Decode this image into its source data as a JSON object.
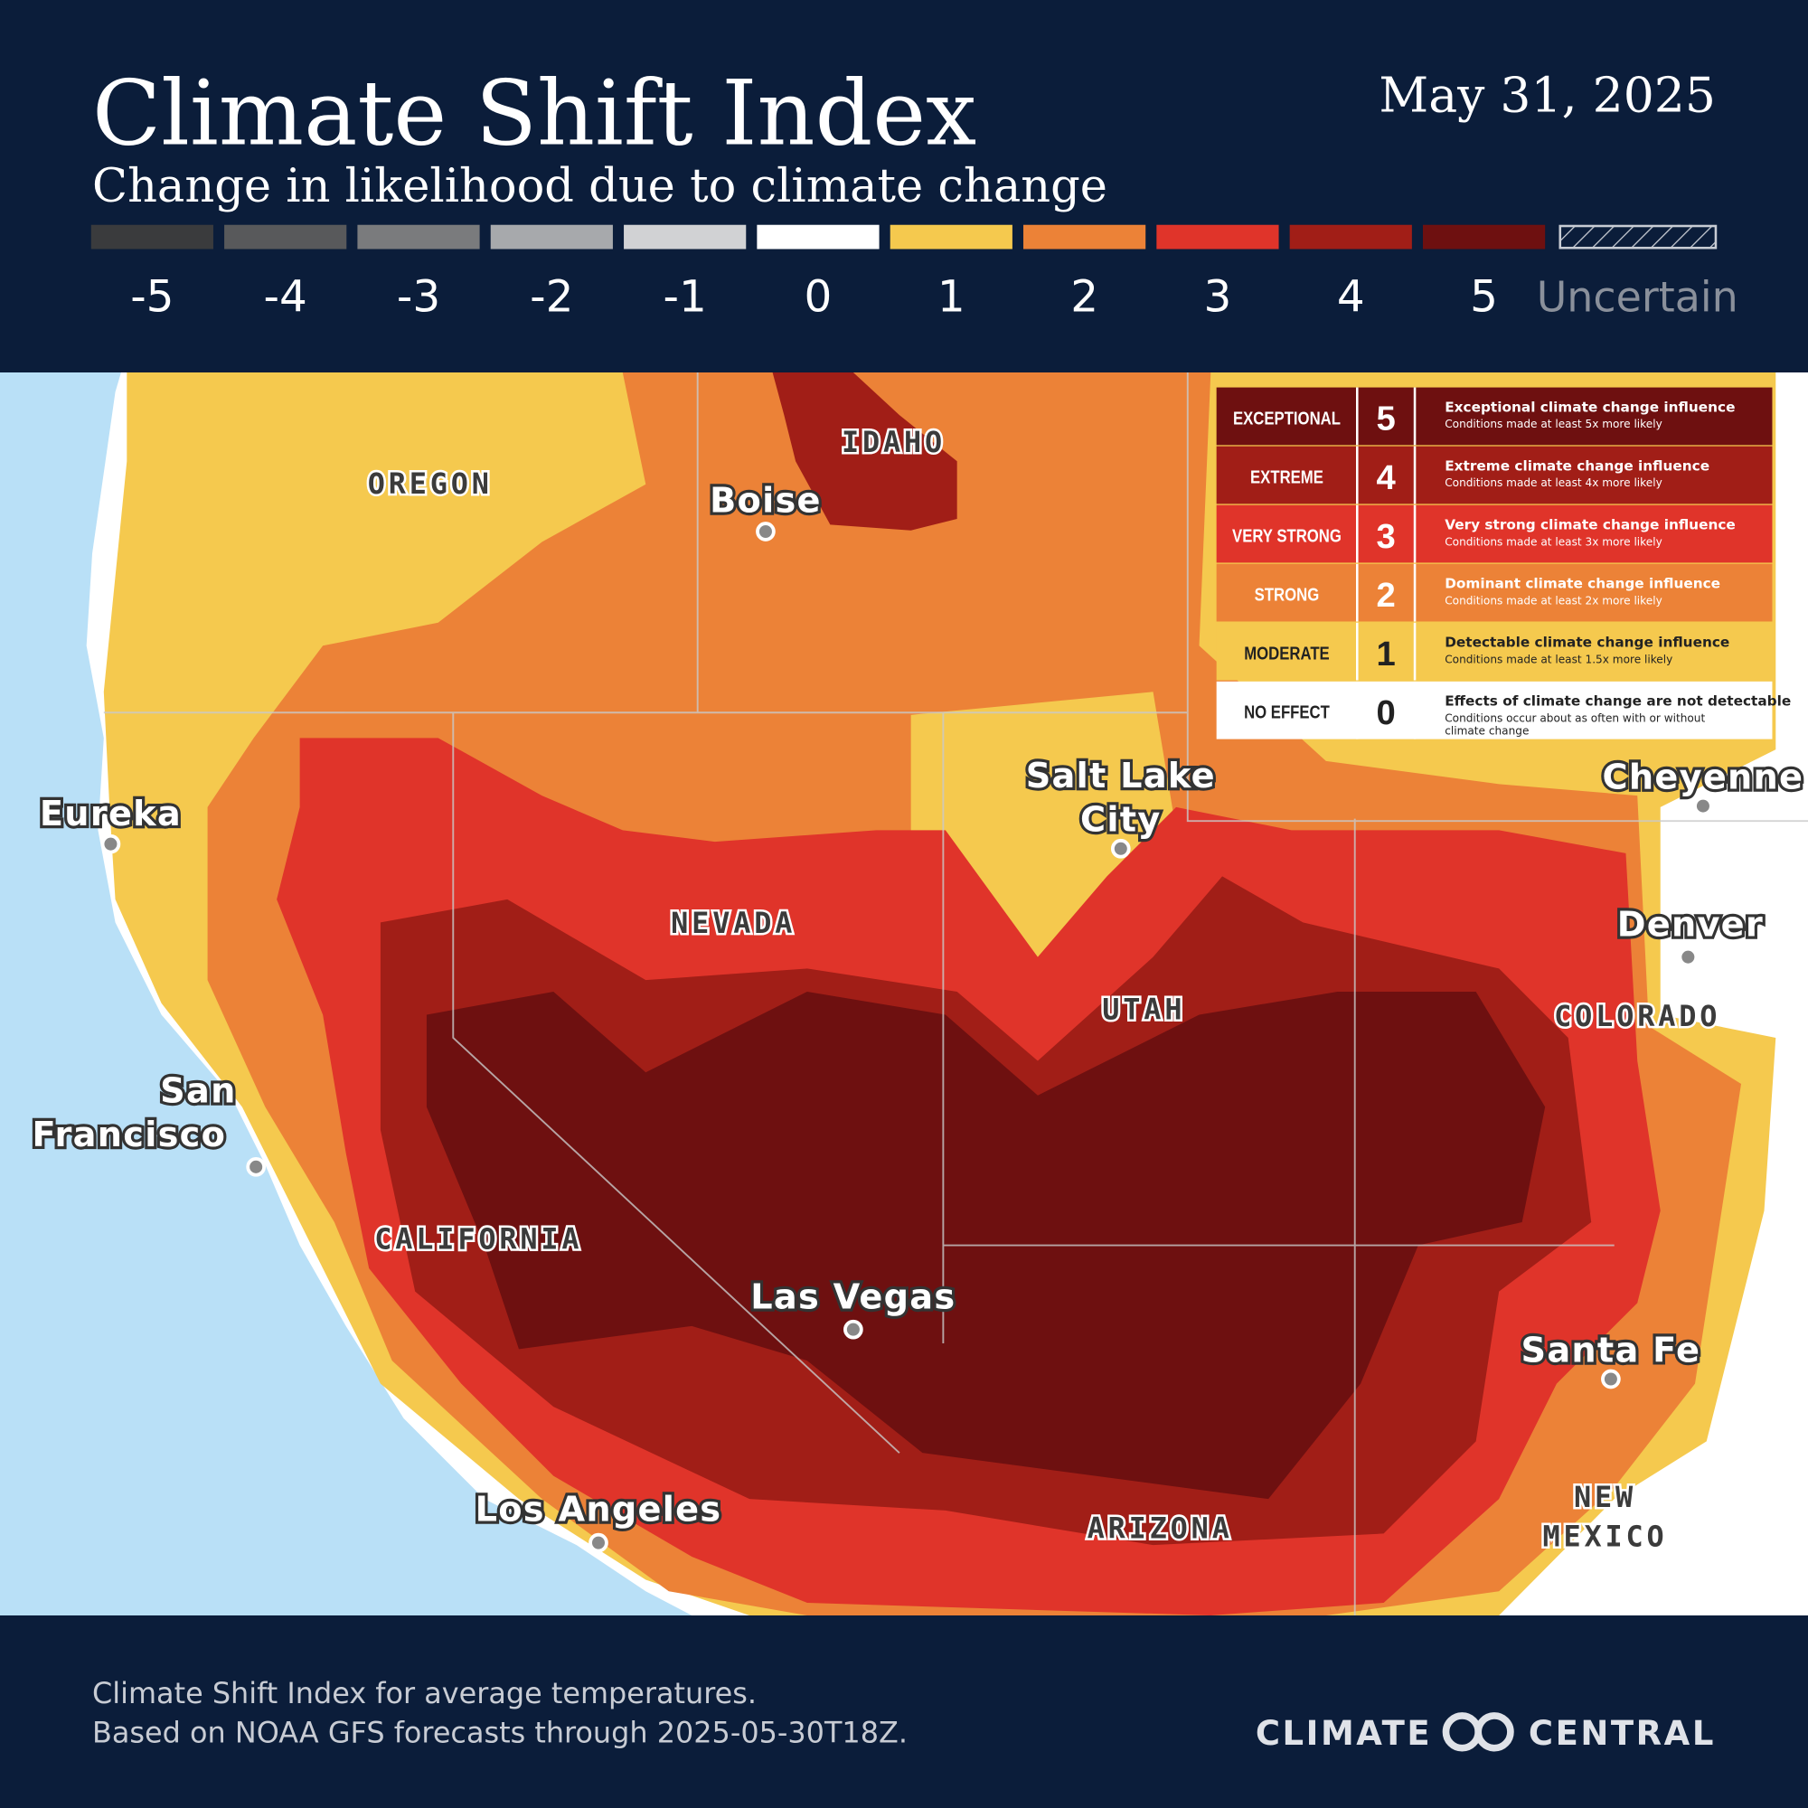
{
  "header": {
    "title": "Climate Shift Index",
    "subtitle": "Change in likelihood due to climate change",
    "date": "May 31, 2025"
  },
  "legend": {
    "scale": [
      {
        "value": -5,
        "color": "#3a3b3d"
      },
      {
        "value": -4,
        "color": "#58595b"
      },
      {
        "value": -3,
        "color": "#7a7b7d"
      },
      {
        "value": -2,
        "color": "#a7a9ac"
      },
      {
        "value": -1,
        "color": "#d1d2d4"
      },
      {
        "value": 0,
        "color": "#ffffff"
      },
      {
        "value": 1,
        "color": "#f5c94e"
      },
      {
        "value": 2,
        "color": "#ec8237"
      },
      {
        "value": 3,
        "color": "#e0342a"
      },
      {
        "value": 4,
        "color": "#a11e17"
      },
      {
        "value": 5,
        "color": "#6e1010"
      }
    ],
    "uncertain_label": "Uncertain"
  },
  "map": {
    "states": [
      {
        "lines": [
          "OREGON"
        ]
      },
      {
        "lines": [
          "IDAHO"
        ]
      },
      {
        "lines": [
          "NEVADA"
        ]
      },
      {
        "lines": [
          "UTAH"
        ]
      },
      {
        "lines": [
          "COLORADO"
        ]
      },
      {
        "lines": [
          "CALIFORNIA"
        ]
      },
      {
        "lines": [
          "ARIZONA"
        ]
      },
      {
        "lines": [
          "NEW",
          "MEXICO"
        ]
      }
    ],
    "cities": [
      {
        "lines": [
          "Boise"
        ]
      },
      {
        "lines": [
          "Eureka"
        ]
      },
      {
        "lines": [
          "Salt Lake",
          "City"
        ]
      },
      {
        "lines": [
          "Cheyenne"
        ]
      },
      {
        "lines": [
          "Denver"
        ]
      },
      {
        "lines": [
          "San",
          "Francisco"
        ]
      },
      {
        "lines": [
          "Las Vegas"
        ]
      },
      {
        "lines": [
          "Los Angeles"
        ]
      },
      {
        "lines": [
          "Santa Fe"
        ]
      }
    ],
    "key": {
      "rows": [
        {
          "category": "EXCEPTIONAL",
          "level": 5,
          "color": "#6e1010",
          "heading": "Exceptional climate change influence",
          "description": [
            "Conditions made at least 5x more likely"
          ]
        },
        {
          "category": "EXTREME",
          "level": 4,
          "color": "#a11e17",
          "heading": "Extreme climate change influence",
          "description": [
            "Conditions made at least 4x more likely"
          ]
        },
        {
          "category": "VERY STRONG",
          "level": 3,
          "color": "#e0342a",
          "heading": "Very strong climate change influence",
          "description": [
            "Conditions made at least 3x more likely"
          ]
        },
        {
          "category": "STRONG",
          "level": 2,
          "color": "#ec8237",
          "heading": "Dominant climate change influence",
          "description": [
            "Conditions made at least  2x more likely"
          ]
        },
        {
          "category": "MODERATE",
          "level": 1,
          "color": "#f5c94e",
          "heading": "Detectable climate change influence",
          "description": [
            "Conditions made at least 1.5x more likely"
          ]
        },
        {
          "category": "NO EFFECT",
          "level": 0,
          "color": "#ffffff",
          "heading": "Effects of climate change are not detectable",
          "description": [
            "Conditions occur about as often with or without",
            "climate change"
          ]
        }
      ]
    }
  },
  "footer": {
    "lines": [
      "Climate Shift Index for average temperatures.",
      "Based on NOAA GFS forecasts through 2025-05-30T18Z."
    ],
    "logo_left": "CLIMATE",
    "logo_right": "CENTRAL"
  }
}
